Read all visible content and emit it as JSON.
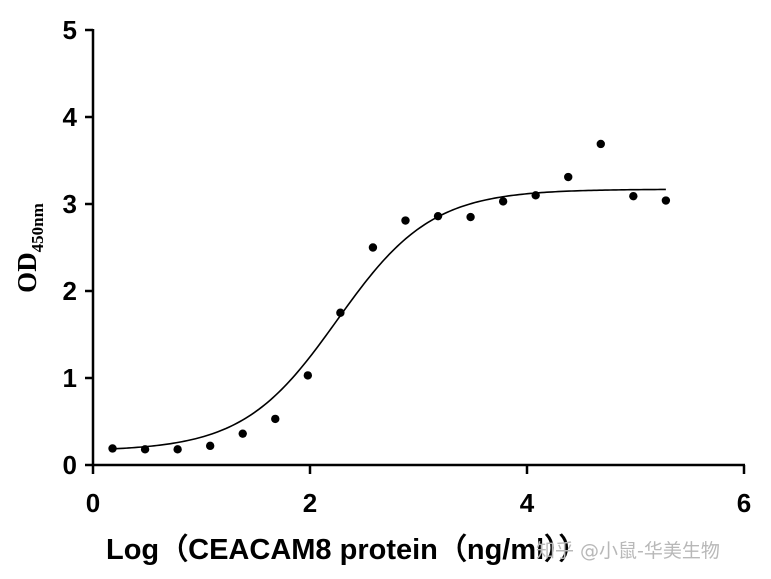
{
  "chart_data": {
    "type": "scatter",
    "xlabel": "Log（CEACAM8 protein（ng/ml））",
    "ylabel_main": "OD",
    "ylabel_sub": "450nm",
    "xlim": [
      0,
      6
    ],
    "ylim": [
      0,
      5
    ],
    "x_ticks": [
      "0",
      "2",
      "4",
      "6"
    ],
    "y_ticks": [
      "0",
      "1",
      "2",
      "3",
      "4",
      "5"
    ],
    "grid": false,
    "series": [
      {
        "x": [
          0.18,
          0.48,
          0.78,
          1.08,
          1.38,
          1.68,
          1.98,
          2.28,
          2.58,
          2.88,
          3.18,
          3.48,
          3.78,
          4.08,
          4.38,
          4.68,
          4.98,
          5.28
        ],
        "y": [
          0.19,
          0.18,
          0.18,
          0.22,
          0.36,
          0.53,
          1.03,
          1.75,
          2.5,
          2.81,
          2.86,
          2.85,
          3.03,
          3.1,
          3.31,
          3.69,
          3.09,
          3.04
        ]
      }
    ],
    "fit": {
      "type": "4PL",
      "bottom": 0.16,
      "top": 3.17,
      "logEC50": 2.25,
      "hill": 1.0,
      "x_range": [
        0.18,
        5.28
      ]
    },
    "marker_color": "#000000",
    "line_color": "#000000"
  },
  "watermark": "知乎 @小鼠-华美生物"
}
